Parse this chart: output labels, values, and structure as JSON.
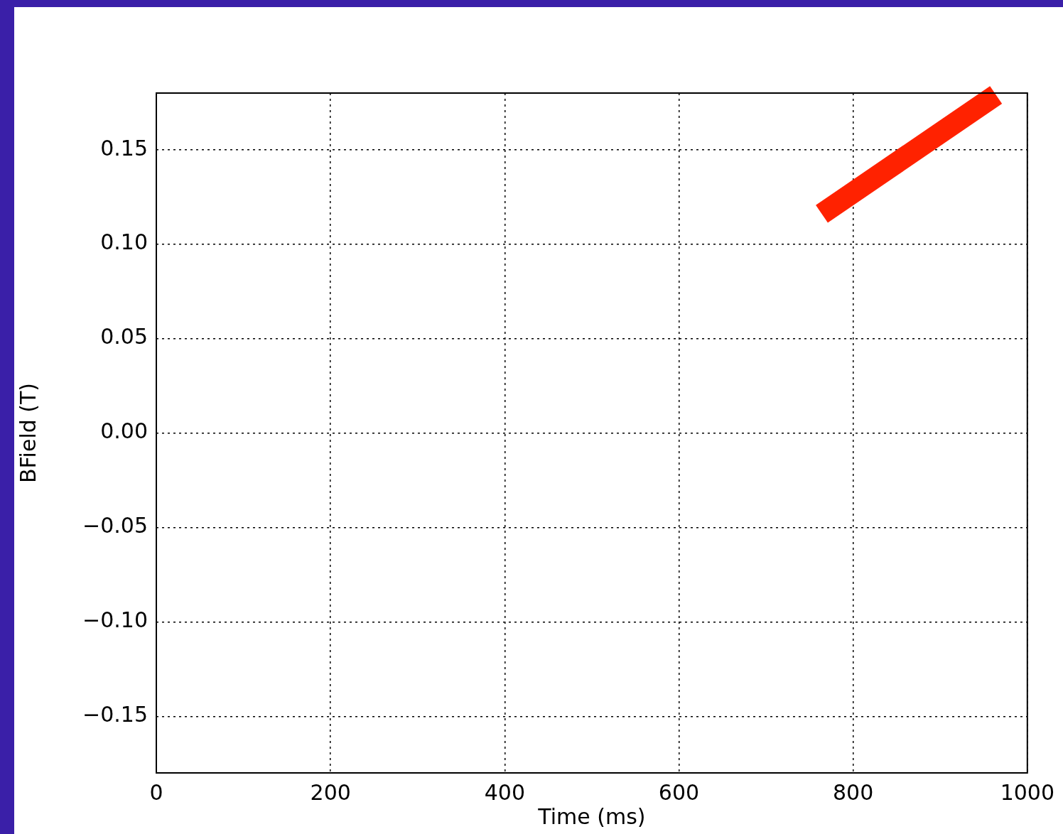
{
  "chart_data": {
    "type": "line",
    "xlabel": "Time (ms)",
    "ylabel": "BField (T)",
    "series": [
      {
        "color": "#ff2200",
        "x": [
          764,
          964
        ],
        "values": [
          0.116,
          0.179
        ]
      }
    ],
    "xlim": [
      0,
      1000
    ],
    "ylim": [
      -0.18,
      0.18
    ],
    "xticks": [
      0,
      200,
      400,
      600,
      800,
      1000
    ],
    "yticks": [
      {
        "value": -0.15,
        "label": "−0.15"
      },
      {
        "value": -0.1,
        "label": "−0.10"
      },
      {
        "value": -0.05,
        "label": "−0.05"
      },
      {
        "value": 0,
        "label": "0.00"
      },
      {
        "value": 0.05,
        "label": "0.05"
      },
      {
        "value": 0.1,
        "label": "0.10"
      },
      {
        "value": 0.15,
        "label": "0.15"
      }
    ],
    "grid": true,
    "marker": "none"
  }
}
